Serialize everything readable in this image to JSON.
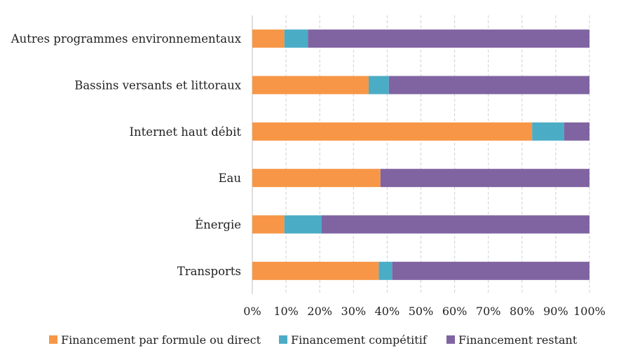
{
  "chart_data": {
    "type": "bar",
    "orientation": "horizontal",
    "stacked": true,
    "percent": true,
    "categories": [
      "Autres programmes environnementaux",
      "Bassins versants et littoraux",
      "Internet haut débit",
      "Eau",
      "Énergie",
      "Transports"
    ],
    "series": [
      {
        "name": "Financement par formule ou direct",
        "color": "#F79646",
        "values": [
          9.5,
          34.5,
          83,
          38,
          9.5,
          37.5
        ]
      },
      {
        "name": "Financement compétitif",
        "color": "#4BACC6",
        "values": [
          7,
          6,
          9.5,
          0,
          11,
          4
        ]
      },
      {
        "name": "Financement restant",
        "color": "#8064A2",
        "values": [
          83.5,
          59.5,
          7.5,
          62,
          79.5,
          58.5
        ]
      }
    ],
    "xlim": [
      0,
      100
    ],
    "xticks": [
      "0%",
      "10%",
      "20%",
      "30%",
      "40%",
      "50%",
      "60%",
      "70%",
      "80%",
      "90%",
      "100%"
    ],
    "grid": true,
    "legend_position": "bottom",
    "title": "",
    "xlabel": "",
    "ylabel": ""
  }
}
